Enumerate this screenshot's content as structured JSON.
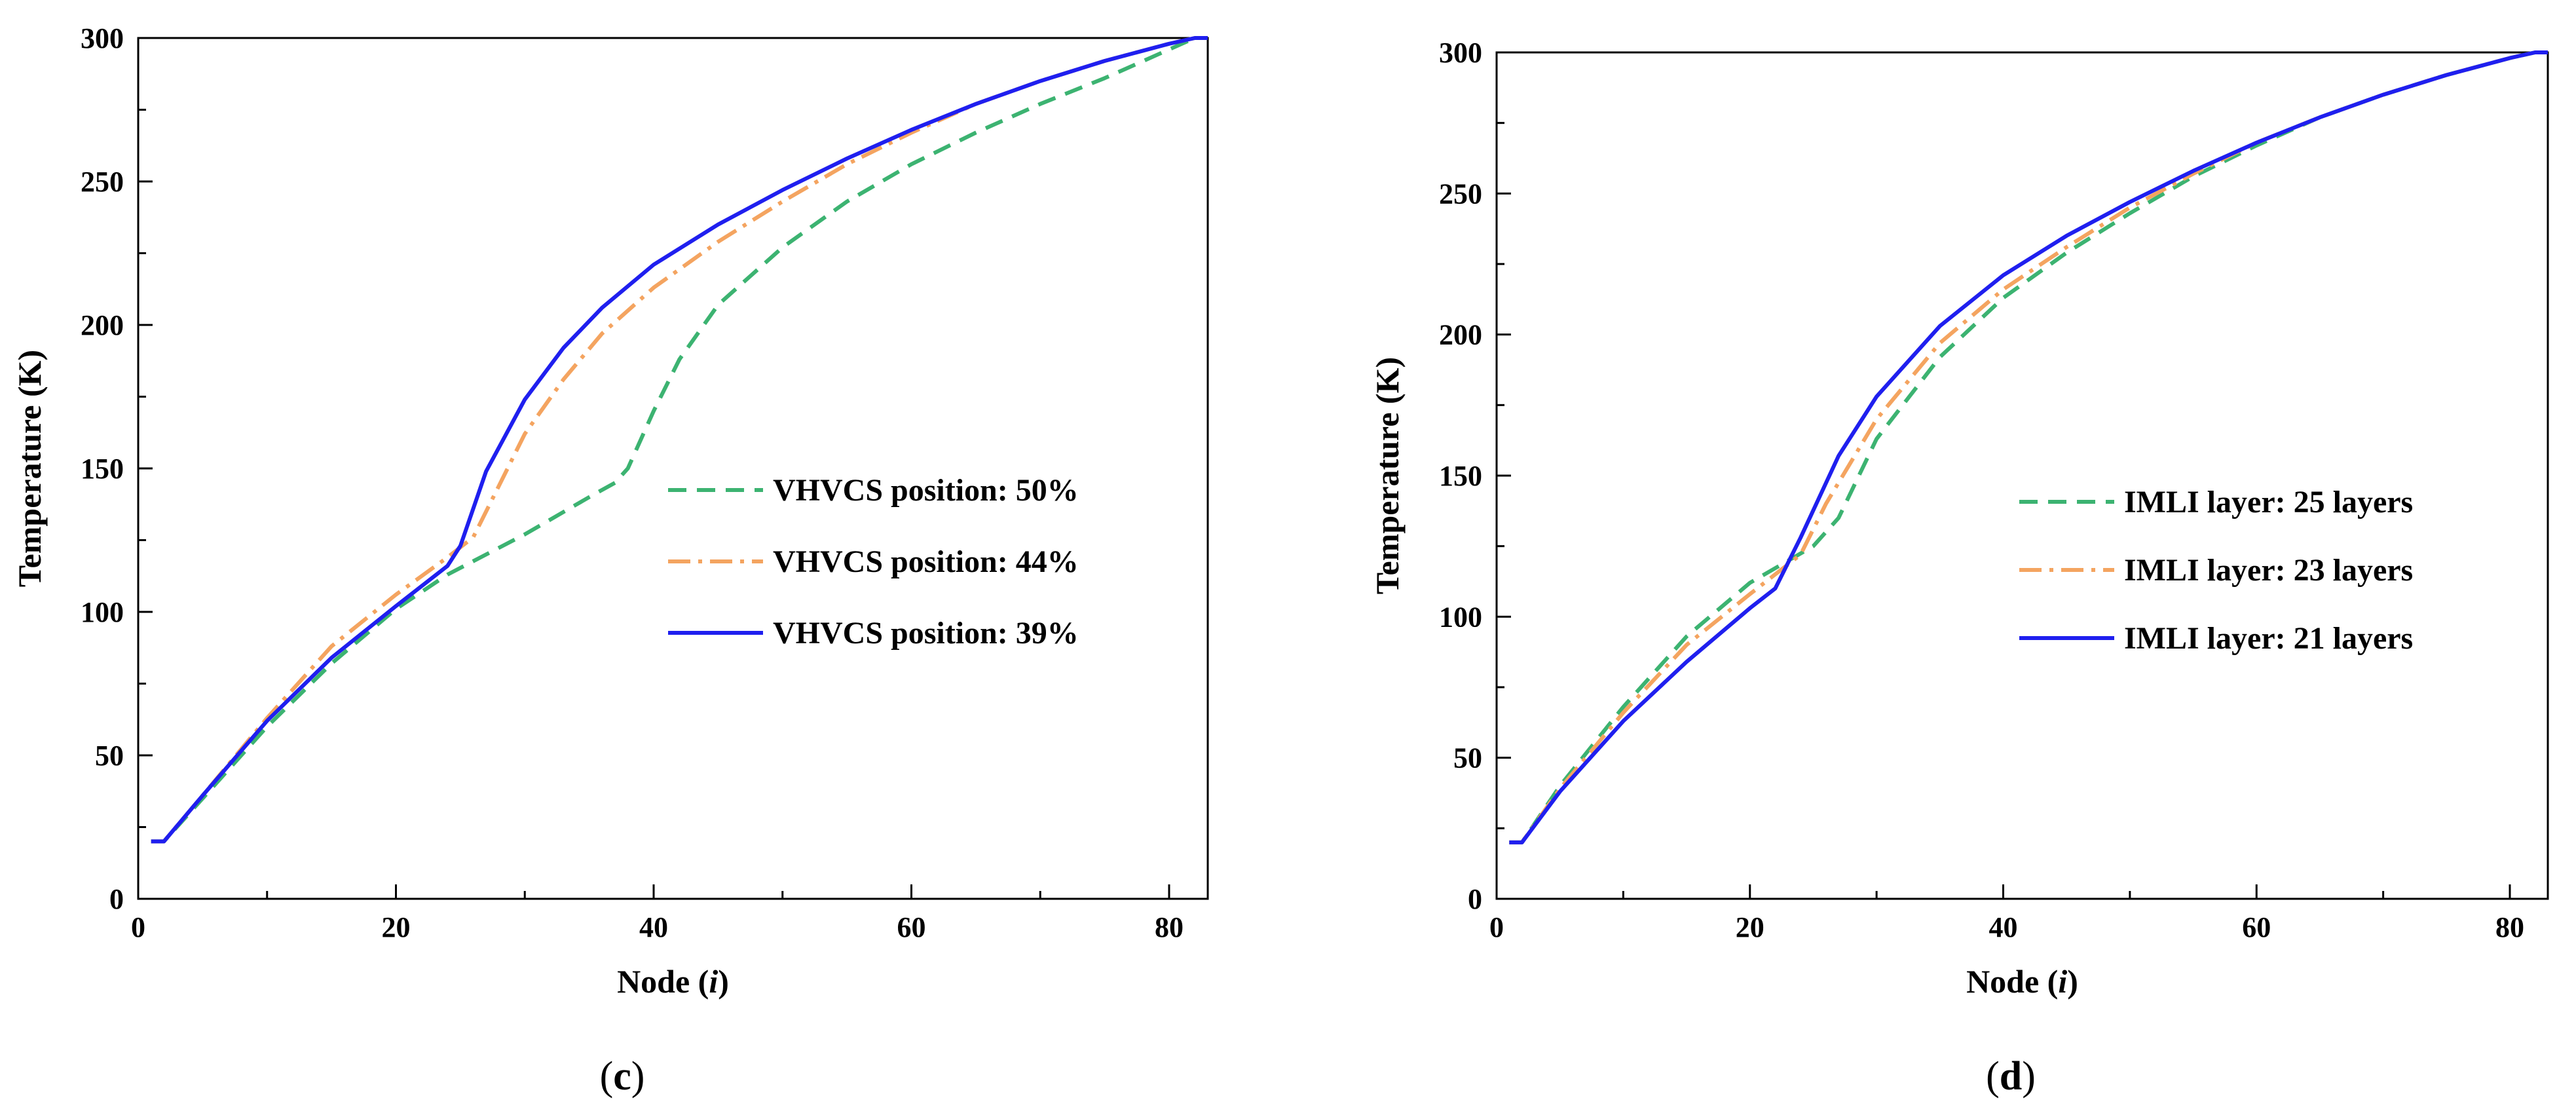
{
  "panels": [
    {
      "id": "c",
      "panel_label": "c",
      "xlabel_prefix": "Node (",
      "xlabel_var": "i",
      "xlabel_suffix": ")",
      "ylabel": "Temperature (K)",
      "legend_texts": [
        "VHVCS position: 50%",
        "VHVCS position: 44%",
        "VHVCS position: 39%"
      ]
    },
    {
      "id": "d",
      "panel_label": "d",
      "xlabel_prefix": "Node (",
      "xlabel_var": "i",
      "xlabel_suffix": ")",
      "ylabel": "Temperature (K)",
      "legend_texts": [
        "IMLI layer: 25 layers",
        "IMLI layer: 23 layers",
        "IMLI layer: 21 layers"
      ]
    }
  ],
  "chart_data": [
    {
      "type": "line",
      "panel": "c",
      "xlabel": "Node (i)",
      "ylabel": "Temperature (K)",
      "xlim": [
        0,
        83
      ],
      "ylim": [
        0,
        300
      ],
      "xticks": [
        0,
        20,
        40,
        60,
        80
      ],
      "yticks": [
        0,
        50,
        100,
        150,
        200,
        250,
        300
      ],
      "legend_position": "center-right",
      "series": [
        {
          "name": "VHVCS position: 50%",
          "color": "#3cb371",
          "dash": "dashed",
          "x": [
            1,
            2,
            5,
            10,
            15,
            20,
            24,
            30,
            35,
            37,
            38,
            40,
            42,
            45,
            50,
            55,
            60,
            65,
            70,
            75,
            80,
            82,
            83
          ],
          "y": [
            20,
            20,
            35,
            60,
            82,
            101,
            113,
            127,
            140,
            145,
            150,
            170,
            188,
            207,
            227,
            243,
            256,
            267,
            277,
            286,
            296,
            300,
            300
          ]
        },
        {
          "name": "VHVCS position: 44%",
          "color": "#f4a460",
          "dash": "dashdot",
          "x": [
            1,
            2,
            5,
            10,
            15,
            20,
            24,
            26,
            28,
            30,
            33,
            36,
            40,
            45,
            50,
            55,
            60,
            65,
            70,
            75,
            80,
            82,
            83
          ],
          "y": [
            20,
            20,
            36,
            63,
            88,
            106,
            119,
            126,
            144,
            162,
            181,
            197,
            213,
            229,
            243,
            256,
            267,
            277,
            285,
            292,
            298,
            300,
            300
          ]
        },
        {
          "name": "VHVCS position: 39%",
          "color": "#1f1fef",
          "dash": "solid",
          "x": [
            1,
            2,
            5,
            10,
            15,
            20,
            24,
            25,
            27,
            30,
            33,
            36,
            40,
            45,
            50,
            55,
            60,
            65,
            70,
            75,
            80,
            82,
            83
          ],
          "y": [
            20,
            20,
            36,
            62,
            84,
            102,
            116,
            123,
            149,
            174,
            192,
            206,
            221,
            235,
            247,
            258,
            268,
            277,
            285,
            292,
            298,
            300,
            300
          ]
        }
      ]
    },
    {
      "type": "line",
      "panel": "d",
      "xlabel": "Node (i)",
      "ylabel": "Temperature (K)",
      "xlim": [
        0,
        83
      ],
      "ylim": [
        0,
        300
      ],
      "xticks": [
        0,
        20,
        40,
        60,
        80
      ],
      "yticks": [
        0,
        50,
        100,
        150,
        200,
        250,
        300
      ],
      "legend_position": "center-right",
      "series": [
        {
          "name": "IMLI layer: 25 layers",
          "color": "#3cb371",
          "dash": "dashed",
          "x": [
            1,
            2,
            5,
            10,
            15,
            20,
            25,
            27,
            30,
            35,
            40,
            45,
            50,
            55,
            60,
            65,
            70,
            75,
            80,
            82,
            83
          ],
          "y": [
            20,
            20,
            40,
            68,
            93,
            112,
            125,
            135,
            163,
            192,
            213,
            229,
            243,
            256,
            267,
            277,
            285,
            292,
            298,
            300,
            300
          ]
        },
        {
          "name": "IMLI layer: 23 layers",
          "color": "#f4a460",
          "dash": "dashdot",
          "x": [
            1,
            2,
            5,
            10,
            15,
            20,
            24,
            26,
            30,
            35,
            40,
            45,
            50,
            55,
            60,
            65,
            70,
            75,
            80,
            82,
            83
          ],
          "y": [
            20,
            20,
            39,
            66,
            90,
            108,
            122,
            140,
            170,
            197,
            216,
            231,
            245,
            257,
            268,
            277,
            285,
            292,
            298,
            300,
            300
          ]
        },
        {
          "name": "IMLI layer: 21 layers",
          "color": "#1f1fef",
          "dash": "solid",
          "x": [
            1,
            2,
            5,
            10,
            15,
            20,
            22,
            24,
            27,
            30,
            35,
            40,
            45,
            50,
            55,
            60,
            65,
            70,
            75,
            80,
            82,
            83
          ],
          "y": [
            20,
            20,
            38,
            63,
            84,
            103,
            110,
            128,
            157,
            178,
            203,
            221,
            235,
            247,
            258,
            268,
            277,
            285,
            292,
            298,
            300,
            300
          ]
        }
      ]
    }
  ]
}
